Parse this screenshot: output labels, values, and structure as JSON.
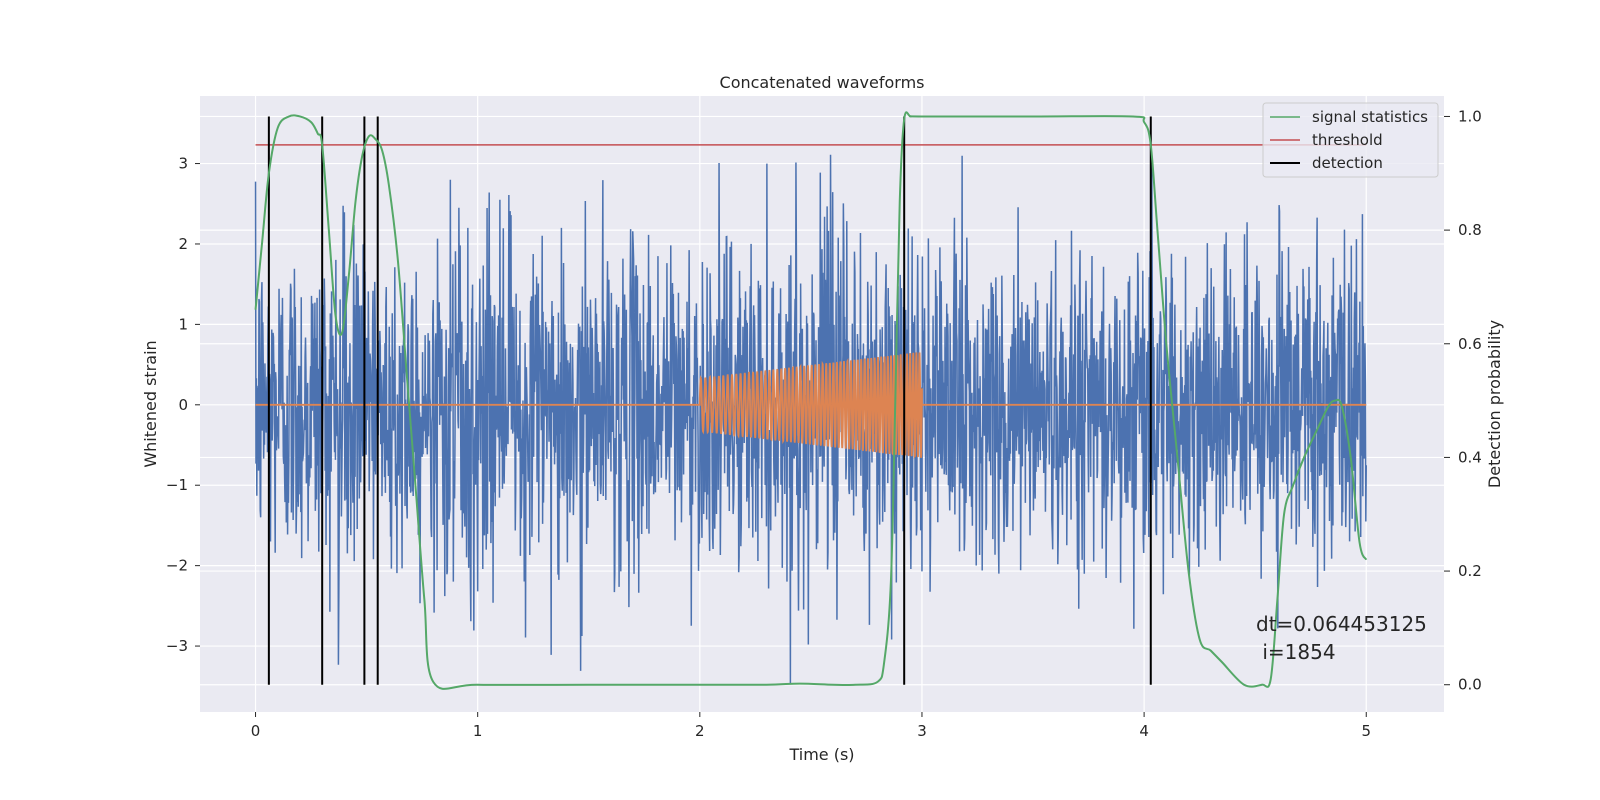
{
  "chart_data": {
    "type": "line",
    "title": "Concatenated waveforms",
    "xlabel": "Time (s)",
    "ylabel_left": "Whitened strain",
    "ylabel_right": "Detection probability",
    "xlim": [
      -0.25,
      5.35
    ],
    "ylim_left": [
      -3.82,
      3.84
    ],
    "ylim_right": [
      -0.048,
      1.036
    ],
    "x_ticks": [
      0,
      1,
      2,
      3,
      4,
      5
    ],
    "x_tick_labels": [
      "0",
      "1",
      "2",
      "3",
      "4",
      "5"
    ],
    "y_left_ticks": [
      -3,
      -2,
      -1,
      0,
      1,
      2,
      3
    ],
    "y_left_tick_labels": [
      "−3",
      "−2",
      "−1",
      "0",
      "1",
      "2",
      "3"
    ],
    "y_right_ticks": [
      0.0,
      0.2,
      0.4,
      0.6,
      0.8,
      1.0
    ],
    "y_right_tick_labels": [
      "0.0",
      "0.2",
      "0.4",
      "0.6",
      "0.8",
      "1.0"
    ],
    "grid": true,
    "legend_position": "top-right",
    "legend": [
      "signal statistics",
      "threshold",
      "detection"
    ],
    "colors": {
      "strain": "#4c72b0",
      "injected": "#dd8452",
      "signal_statistics": "#55a868",
      "threshold": "#c44e52",
      "detection": "#000000",
      "background": "#eaeaf2",
      "grid": "#ffffff"
    },
    "strain_noise": {
      "x_range": [
        0,
        5
      ],
      "approx_amplitude_std": 1.0,
      "y_min": -3.5,
      "y_max": 3.25
    },
    "injected_signal": {
      "x_start": 2.0,
      "x_end": 3.0,
      "amplitude_start": 0.33,
      "amplitude_end": 0.66,
      "cycles": 60
    },
    "threshold": {
      "x": [
        0,
        5
      ],
      "y": 0.95
    },
    "detections_x": [
      0.06,
      0.3,
      0.49,
      0.55,
      2.92,
      4.03
    ],
    "signal_statistics": {
      "x": [
        0.0,
        0.03,
        0.06,
        0.1,
        0.15,
        0.2,
        0.25,
        0.28,
        0.3,
        0.33,
        0.36,
        0.39,
        0.42,
        0.45,
        0.48,
        0.51,
        0.54,
        0.57,
        0.6,
        0.64,
        0.68,
        0.72,
        0.76,
        0.8,
        1.0,
        1.5,
        2.0,
        2.3,
        2.45,
        2.6,
        2.7,
        2.8,
        2.83,
        2.86,
        2.88,
        2.9,
        2.92,
        2.95,
        3.0,
        3.5,
        3.95,
        4.0,
        4.03,
        4.06,
        4.1,
        4.15,
        4.2,
        4.25,
        4.3,
        4.35,
        4.45,
        4.53,
        4.57,
        4.6,
        4.63,
        4.67,
        4.72,
        4.78,
        4.83,
        4.86,
        4.89,
        4.93,
        4.97,
        5.0
      ],
      "y": [
        0.66,
        0.78,
        0.9,
        0.98,
        1.0,
        1.0,
        0.99,
        0.97,
        0.95,
        0.8,
        0.65,
        0.62,
        0.72,
        0.85,
        0.93,
        0.965,
        0.96,
        0.94,
        0.88,
        0.75,
        0.55,
        0.35,
        0.15,
        0.005,
        0.0,
        0.0,
        0.0,
        0.0,
        0.002,
        0.0,
        0.0,
        0.005,
        0.04,
        0.18,
        0.5,
        0.85,
        0.995,
        1.0,
        1.0,
        1.0,
        1.0,
        0.99,
        0.95,
        0.8,
        0.6,
        0.4,
        0.2,
        0.08,
        0.06,
        0.04,
        0.0,
        0.0,
        0.01,
        0.15,
        0.3,
        0.35,
        0.4,
        0.45,
        0.49,
        0.5,
        0.49,
        0.4,
        0.25,
        0.22
      ]
    }
  },
  "annotation": {
    "dt": "dt=0.064453125",
    "i": " i=1854"
  }
}
